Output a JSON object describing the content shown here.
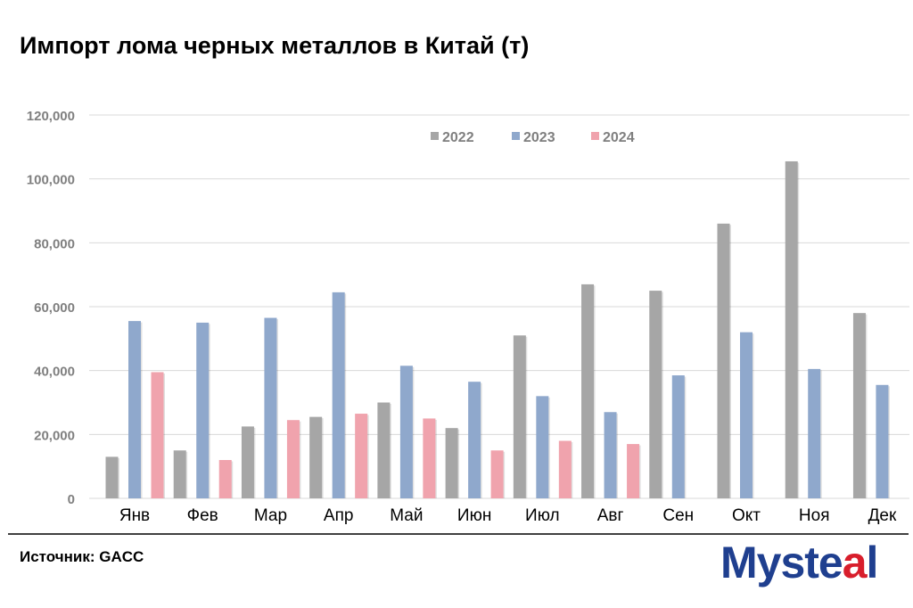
{
  "title": "Импорт лома черных металлов в Китай (т)",
  "source": "Источник: GACC",
  "logo": {
    "text": "Mysteel"
  },
  "colors": {
    "2022": "#a6a6a6",
    "2023": "#8fa8cc",
    "2024": "#f0a3ad",
    "grid": "#d9d9d9",
    "axis_text": "#7f7f7f"
  },
  "chart_data": {
    "type": "bar",
    "title": "Импорт лома черных металлов в Китай (т)",
    "categories": [
      "Янв",
      "Фев",
      "Мар",
      "Апр",
      "Май",
      "Июн",
      "Июл",
      "Авг",
      "Сен",
      "Окт",
      "Ноя",
      "Дек"
    ],
    "series": [
      {
        "name": "2022",
        "values": [
          13000,
          15000,
          22500,
          25500,
          30000,
          22000,
          51000,
          67000,
          65000,
          86000,
          105500,
          58000
        ]
      },
      {
        "name": "2023",
        "values": [
          55500,
          55000,
          56500,
          64500,
          41500,
          36500,
          32000,
          27000,
          38500,
          52000,
          40500,
          35500
        ]
      },
      {
        "name": "2024",
        "values": [
          39500,
          12000,
          24500,
          26500,
          25000,
          15000,
          18000,
          17000,
          null,
          null,
          null,
          null
        ]
      }
    ],
    "ylim": [
      0,
      120000
    ],
    "yticks": [
      0,
      20000,
      40000,
      60000,
      80000,
      100000,
      120000
    ],
    "ytick_labels": [
      "0",
      "20,000",
      "40,000",
      "60,000",
      "80,000",
      "100,000",
      "120,000"
    ],
    "xlabel": "",
    "ylabel": "",
    "grid": true,
    "legend_position": "top-center"
  }
}
